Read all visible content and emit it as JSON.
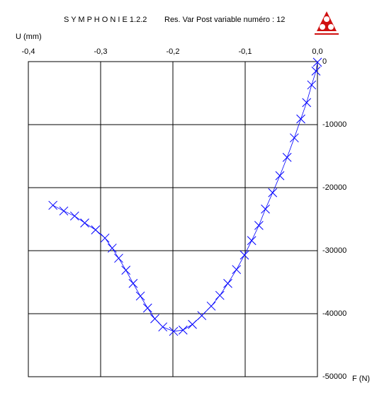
{
  "chart_data": {
    "type": "scatter",
    "title": "S Y M P H O N I E  1.2.2",
    "subtitle": "Res. Var Post variable numéro  :   12",
    "xlabel": "U (mm)",
    "ylabel": "F (N)",
    "x": [
      -0.366,
      -0.351,
      -0.336,
      -0.322,
      -0.307,
      -0.294,
      -0.284,
      -0.275,
      -0.265,
      -0.255,
      -0.245,
      -0.235,
      -0.225,
      -0.214,
      -0.199,
      -0.186,
      -0.173,
      -0.16,
      -0.147,
      -0.135,
      -0.124,
      -0.112,
      -0.101,
      -0.091,
      -0.081,
      -0.072,
      -0.062,
      -0.052,
      -0.042,
      -0.032,
      -0.023,
      -0.015,
      -0.008,
      -0.002,
      0
    ],
    "values": [
      -22800,
      -23700,
      -24500,
      -25600,
      -26700,
      -28000,
      -29600,
      -31200,
      -33100,
      -35200,
      -37200,
      -39100,
      -40800,
      -42100,
      -42800,
      -42600,
      -41700,
      -40300,
      -38800,
      -37100,
      -35200,
      -33000,
      -30700,
      -28400,
      -26000,
      -23400,
      -20800,
      -18100,
      -15200,
      -12100,
      -9100,
      -6500,
      -3700,
      -1500,
      -100
    ],
    "color": "#0000ff",
    "xlim": [
      -0.4,
      0
    ],
    "xticks": [
      {
        "value": -0.4,
        "label": "-0,4"
      },
      {
        "value": -0.3,
        "label": "-0,3"
      },
      {
        "value": -0.2,
        "label": "-0,2"
      },
      {
        "value": -0.1,
        "label": "-0,1"
      },
      {
        "value": 0,
        "label": "0,0"
      }
    ],
    "ylim": [
      -50000,
      0
    ],
    "yticks": [
      0,
      -10000,
      -20000,
      -30000,
      -40000,
      -50000
    ],
    "grid": true
  }
}
